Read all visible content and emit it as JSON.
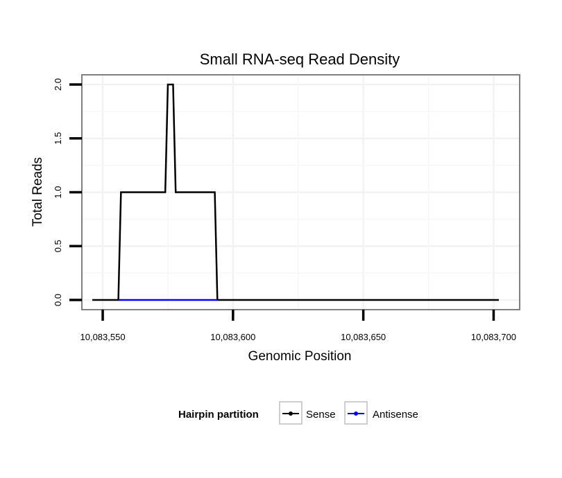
{
  "chart_data": {
    "type": "line",
    "title": "Small RNA-seq Read Density",
    "xlabel": "Genomic Position",
    "ylabel": "Total Reads",
    "xlim": [
      10083542,
      10083710
    ],
    "ylim": [
      -0.09,
      2.09
    ],
    "x_ticks": [
      10083550,
      10083600,
      10083650,
      10083700
    ],
    "x_tick_labels": [
      "10,083,550",
      "10,083,600",
      "10,083,650",
      "10,083,700"
    ],
    "y_ticks": [
      0,
      0.5,
      1,
      1.5,
      2
    ],
    "y_tick_labels": [
      "0.0",
      "0.5",
      "1.0",
      "1.5",
      "2.0"
    ],
    "grid": true,
    "legend": {
      "title": "Hairpin partition",
      "placement": "bottom",
      "entries": [
        {
          "label": "Sense",
          "color": "#000000"
        },
        {
          "label": "Antisense",
          "color": "#0000ff"
        }
      ]
    },
    "series": [
      {
        "name": "Sense",
        "color": "#000000",
        "x": [
          10083546,
          10083556,
          10083557,
          10083574,
          10083575,
          10083577,
          10083578,
          10083593,
          10083594,
          10083702
        ],
        "y": [
          0,
          0,
          1,
          1,
          2,
          2,
          1,
          1,
          0,
          0
        ]
      },
      {
        "name": "Antisense",
        "color": "#0000ff",
        "x": [
          10083556,
          10083594
        ],
        "y": [
          0,
          0
        ]
      }
    ]
  }
}
